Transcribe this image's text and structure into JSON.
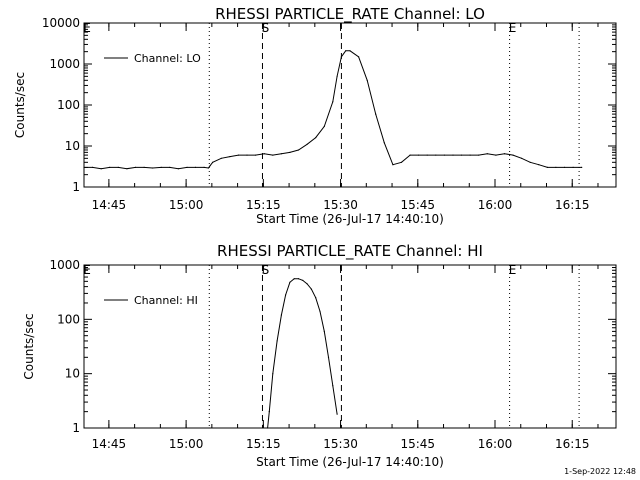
{
  "footer": {
    "timestamp": "1-Sep-2022 12:48"
  },
  "chart_data": [
    {
      "type": "line",
      "title": "RHESSI PARTICLE_RATE Channel: LO",
      "xlabel": "Start Time (26-Jul-17 14:40:10)",
      "ylabel": "Counts/sec",
      "y_scale": "log",
      "ylim": [
        1,
        10000
      ],
      "y_ticks": [
        1,
        10,
        100,
        1000,
        10000
      ],
      "y_tick_labels": [
        "1",
        "10",
        "100",
        "1000",
        "10000"
      ],
      "xlim": [
        0,
        6200
      ],
      "x_ticks": [
        290,
        1190,
        2090,
        2990,
        3890,
        4790,
        5690
      ],
      "x_tick_labels": [
        "14:45",
        "15:00",
        "15:15",
        "15:30",
        "15:45",
        "16:00",
        "16:15"
      ],
      "legend": {
        "label": "Channel: LO",
        "position": "top-left"
      },
      "markers": [
        {
          "label": "",
          "x": 1460,
          "style": "dotted"
        },
        {
          "label": "S",
          "x": 2080,
          "style": "dashed"
        },
        {
          "label": "",
          "x": 3000,
          "style": "dashed"
        },
        {
          "label": "E",
          "x": 4960,
          "style": "dotted"
        },
        {
          "label": "",
          "x": 5770,
          "style": "dotted"
        }
      ],
      "top_left_marker": "E",
      "series": [
        {
          "name": "Channel: LO",
          "x": [
            0,
            100,
            200,
            300,
            400,
            500,
            600,
            700,
            800,
            900,
            1000,
            1100,
            1200,
            1300,
            1400,
            1450,
            1470,
            1500,
            1600,
            1700,
            1800,
            1900,
            2000,
            2100,
            2200,
            2300,
            2400,
            2500,
            2600,
            2700,
            2800,
            2900,
            2950,
            3000,
            3050,
            3100,
            3200,
            3300,
            3400,
            3500,
            3600,
            3700,
            3800,
            3900,
            4000,
            4100,
            4200,
            4300,
            4400,
            4500,
            4600,
            4700,
            4800,
            4900,
            5000,
            5100,
            5200,
            5300,
            5400,
            5500,
            5600,
            5700,
            5800
          ],
          "y": [
            3,
            3,
            2.8,
            3,
            3,
            2.8,
            3,
            3,
            2.9,
            3,
            3,
            2.8,
            3,
            3,
            3,
            2.9,
            3.3,
            4,
            5,
            5.5,
            6,
            6,
            6,
            6.5,
            6,
            6.5,
            7,
            8,
            11,
            16,
            30,
            120,
            500,
            1500,
            2100,
            2100,
            1500,
            400,
            60,
            12,
            3.5,
            4,
            6,
            6,
            6,
            6,
            6,
            6,
            6,
            6,
            6,
            6.5,
            6,
            6.5,
            6,
            5,
            4,
            3.5,
            3,
            3,
            3,
            3,
            3
          ]
        }
      ]
    },
    {
      "type": "line",
      "title": "RHESSI PARTICLE_RATE Channel: HI",
      "xlabel": "Start Time (26-Jul-17 14:40:10)",
      "ylabel": "Counts/sec",
      "y_scale": "log",
      "ylim": [
        1,
        1000
      ],
      "y_ticks": [
        1,
        10,
        100,
        1000
      ],
      "y_tick_labels": [
        "1",
        "10",
        "100",
        "1000"
      ],
      "xlim": [
        0,
        6200
      ],
      "x_ticks": [
        290,
        1190,
        2090,
        2990,
        3890,
        4790,
        5690
      ],
      "x_tick_labels": [
        "14:45",
        "15:00",
        "15:15",
        "15:30",
        "15:45",
        "16:00",
        "16:15"
      ],
      "legend": {
        "label": "Channel: HI",
        "position": "top-left"
      },
      "markers": [
        {
          "label": "",
          "x": 1460,
          "style": "dotted"
        },
        {
          "label": "S",
          "x": 2080,
          "style": "dashed"
        },
        {
          "label": "",
          "x": 3000,
          "style": "dashed"
        },
        {
          "label": "E",
          "x": 4960,
          "style": "dotted"
        },
        {
          "label": "",
          "x": 5770,
          "style": "dotted"
        }
      ],
      "top_left_marker": "E",
      "series": [
        {
          "name": "Channel: HI",
          "x": [
            2140,
            2160,
            2200,
            2250,
            2300,
            2350,
            2400,
            2450,
            2500,
            2550,
            2600,
            2650,
            2700,
            2750,
            2800,
            2850,
            2900,
            2950
          ],
          "y": [
            1,
            2,
            10,
            40,
            120,
            280,
            480,
            560,
            560,
            520,
            450,
            360,
            250,
            140,
            60,
            20,
            6,
            1.8
          ]
        }
      ]
    }
  ]
}
